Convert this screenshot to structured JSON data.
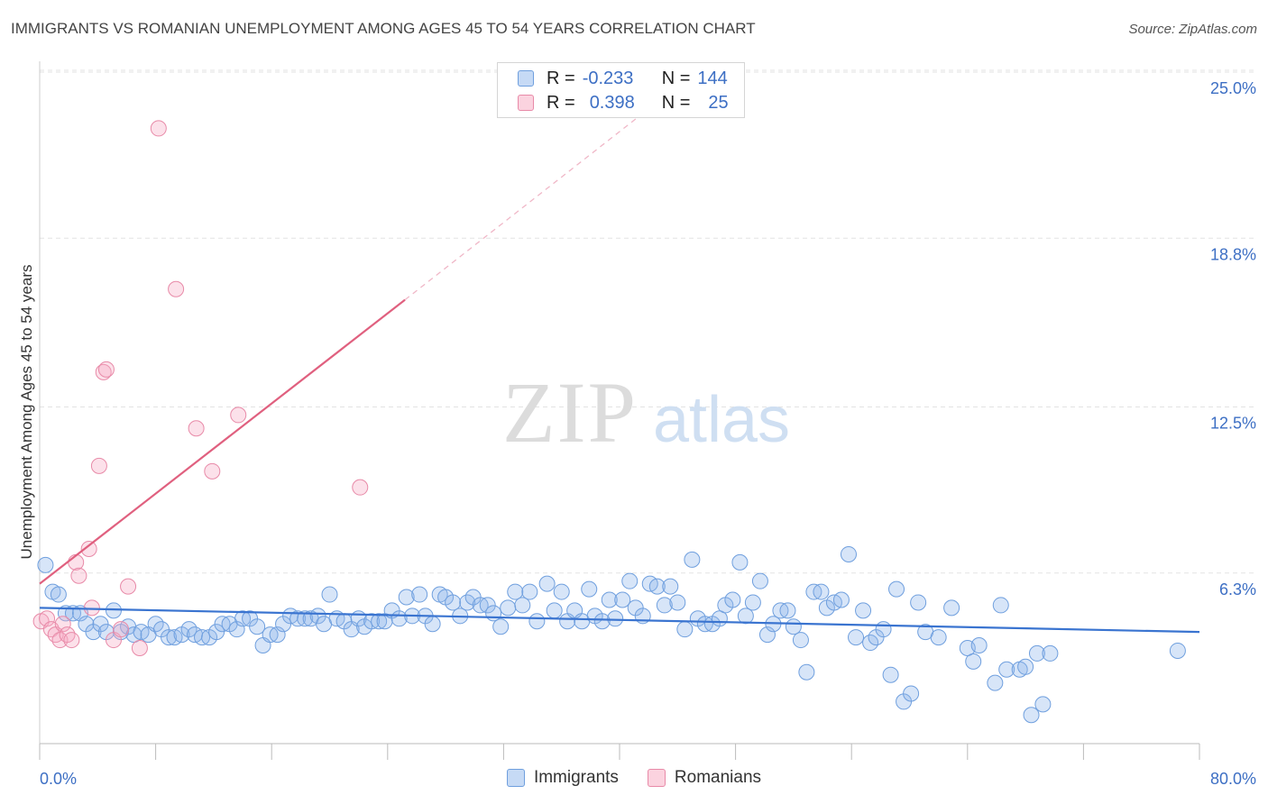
{
  "title": "IMMIGRANTS VS ROMANIAN UNEMPLOYMENT AMONG AGES 45 TO 54 YEARS CORRELATION CHART",
  "source": "Source: ZipAtlas.com",
  "watermark": {
    "zip": "ZIP",
    "atlas": "atlas"
  },
  "legend": {
    "rows": [
      {
        "r_label": "R =",
        "r_value": "-0.233",
        "n_label": "N =",
        "n_value": "144",
        "color": "#a9c8f0",
        "border": "#6f9fde"
      },
      {
        "r_label": "R =",
        "r_value": "0.398",
        "n_label": "N =",
        "n_value": "25",
        "color": "#f7b9cc",
        "border": "#e88aa8"
      }
    ]
  },
  "bottom_legend": {
    "immigrants": "Immigrants",
    "romanians": "Romanians"
  },
  "colors": {
    "immigrants_fill": "rgba(140,180,235,0.35)",
    "immigrants_stroke": "#6f9fde",
    "romanians_fill": "rgba(245,170,195,0.35)",
    "romanians_stroke": "#e88aa8",
    "immigrants_trend": "#3a74d0",
    "romanians_trend": "#e0607f",
    "axis_text": "#3d6fc4",
    "grid": "#e3e3e3"
  },
  "chart_data": {
    "type": "scatter",
    "title": "IMMIGRANTS VS ROMANIAN UNEMPLOYMENT AMONG AGES 45 TO 54 YEARS CORRELATION CHART",
    "xlabel": "",
    "ylabel": "Unemployment Among Ages 45 to 54 years",
    "xlim": [
      0,
      80
    ],
    "ylim": [
      0,
      25
    ],
    "x_tick_labels": [
      "0.0%",
      "80.0%"
    ],
    "y_ticks": [
      {
        "value": 6.3,
        "label": "6.3%"
      },
      {
        "value": 12.5,
        "label": "12.5%"
      },
      {
        "value": 18.8,
        "label": "18.8%"
      },
      {
        "value": 25.0,
        "label": "25.0%"
      }
    ],
    "grid": true,
    "legend_position": "top-center",
    "series": [
      {
        "name": "Immigrants",
        "trend": {
          "x": [
            0,
            80
          ],
          "y": [
            5.0,
            4.1
          ],
          "style": "solid"
        },
        "points": [
          [
            0.4,
            6.6
          ],
          [
            0.9,
            5.6
          ],
          [
            1.3,
            5.5
          ],
          [
            1.8,
            4.8
          ],
          [
            2.3,
            4.8
          ],
          [
            2.8,
            4.8
          ],
          [
            3.2,
            4.4
          ],
          [
            3.7,
            4.1
          ],
          [
            4.2,
            4.4
          ],
          [
            4.6,
            4.1
          ],
          [
            5.1,
            4.9
          ],
          [
            5.6,
            4.1
          ],
          [
            6.1,
            4.3
          ],
          [
            6.5,
            4.0
          ],
          [
            7.0,
            4.1
          ],
          [
            7.5,
            4.0
          ],
          [
            8.0,
            4.4
          ],
          [
            8.4,
            4.2
          ],
          [
            8.9,
            3.9
          ],
          [
            9.3,
            3.9
          ],
          [
            9.8,
            4.0
          ],
          [
            10.3,
            4.2
          ],
          [
            10.7,
            4.0
          ],
          [
            11.2,
            3.9
          ],
          [
            11.7,
            3.9
          ],
          [
            12.2,
            4.1
          ],
          [
            12.6,
            4.4
          ],
          [
            13.1,
            4.4
          ],
          [
            13.6,
            4.2
          ],
          [
            14.0,
            4.6
          ],
          [
            14.5,
            4.6
          ],
          [
            15.0,
            4.3
          ],
          [
            15.4,
            3.6
          ],
          [
            15.9,
            4.0
          ],
          [
            16.4,
            4.0
          ],
          [
            16.8,
            4.4
          ],
          [
            17.3,
            4.7
          ],
          [
            17.8,
            4.6
          ],
          [
            18.3,
            4.6
          ],
          [
            18.7,
            4.6
          ],
          [
            19.2,
            4.7
          ],
          [
            19.6,
            4.4
          ],
          [
            20.0,
            5.5
          ],
          [
            20.5,
            4.6
          ],
          [
            21.0,
            4.5
          ],
          [
            21.5,
            4.2
          ],
          [
            22.0,
            4.6
          ],
          [
            22.4,
            4.3
          ],
          [
            22.9,
            4.5
          ],
          [
            23.4,
            4.5
          ],
          [
            23.8,
            4.5
          ],
          [
            24.3,
            4.9
          ],
          [
            24.8,
            4.6
          ],
          [
            25.3,
            5.4
          ],
          [
            25.7,
            4.7
          ],
          [
            26.2,
            5.5
          ],
          [
            26.6,
            4.7
          ],
          [
            27.1,
            4.4
          ],
          [
            27.6,
            5.5
          ],
          [
            28.0,
            5.4
          ],
          [
            28.5,
            5.2
          ],
          [
            29.0,
            4.7
          ],
          [
            29.5,
            5.2
          ],
          [
            29.9,
            5.4
          ],
          [
            30.4,
            5.1
          ],
          [
            30.9,
            5.1
          ],
          [
            31.3,
            4.8
          ],
          [
            31.8,
            4.3
          ],
          [
            32.3,
            5.0
          ],
          [
            32.8,
            5.6
          ],
          [
            33.3,
            5.1
          ],
          [
            33.8,
            5.6
          ],
          [
            34.3,
            4.5
          ],
          [
            35.0,
            5.9
          ],
          [
            35.5,
            4.9
          ],
          [
            36.0,
            5.6
          ],
          [
            36.4,
            4.5
          ],
          [
            36.9,
            4.9
          ],
          [
            37.4,
            4.5
          ],
          [
            37.9,
            5.7
          ],
          [
            38.3,
            4.7
          ],
          [
            38.8,
            4.5
          ],
          [
            39.3,
            5.3
          ],
          [
            39.7,
            4.6
          ],
          [
            40.2,
            5.3
          ],
          [
            40.7,
            6.0
          ],
          [
            41.1,
            5.0
          ],
          [
            41.6,
            4.7
          ],
          [
            42.1,
            5.9
          ],
          [
            42.6,
            5.8
          ],
          [
            43.1,
            5.1
          ],
          [
            43.5,
            5.8
          ],
          [
            44.0,
            5.2
          ],
          [
            44.5,
            4.2
          ],
          [
            45.0,
            6.8
          ],
          [
            45.4,
            4.6
          ],
          [
            45.9,
            4.4
          ],
          [
            46.4,
            4.4
          ],
          [
            46.9,
            4.6
          ],
          [
            47.3,
            5.1
          ],
          [
            47.8,
            5.3
          ],
          [
            48.3,
            6.7
          ],
          [
            48.7,
            4.7
          ],
          [
            49.2,
            5.2
          ],
          [
            49.7,
            6.0
          ],
          [
            50.2,
            4.0
          ],
          [
            50.6,
            4.4
          ],
          [
            51.1,
            4.9
          ],
          [
            51.6,
            4.9
          ],
          [
            52.0,
            4.3
          ],
          [
            52.5,
            3.8
          ],
          [
            52.9,
            2.6
          ],
          [
            53.4,
            5.6
          ],
          [
            53.9,
            5.6
          ],
          [
            54.3,
            5.0
          ],
          [
            54.8,
            5.2
          ],
          [
            55.3,
            5.3
          ],
          [
            55.8,
            7.0
          ],
          [
            56.3,
            3.9
          ],
          [
            56.8,
            4.9
          ],
          [
            57.3,
            3.7
          ],
          [
            57.7,
            3.9
          ],
          [
            58.2,
            4.2
          ],
          [
            58.7,
            2.5
          ],
          [
            59.1,
            5.7
          ],
          [
            59.6,
            1.5
          ],
          [
            60.1,
            1.8
          ],
          [
            60.6,
            5.2
          ],
          [
            61.1,
            4.1
          ],
          [
            62.0,
            3.9
          ],
          [
            62.9,
            5.0
          ],
          [
            64.0,
            3.5
          ],
          [
            64.4,
            3.0
          ],
          [
            64.8,
            3.6
          ],
          [
            65.9,
            2.2
          ],
          [
            66.3,
            5.1
          ],
          [
            66.7,
            2.7
          ],
          [
            67.6,
            2.7
          ],
          [
            68.0,
            2.8
          ],
          [
            68.4,
            1.0
          ],
          [
            68.8,
            3.3
          ],
          [
            69.2,
            1.4
          ],
          [
            69.7,
            3.3
          ],
          [
            78.5,
            3.4
          ]
        ]
      },
      {
        "name": "Romanians",
        "trend": {
          "x": [
            0,
            25.2
          ],
          "y": [
            5.9,
            16.5
          ],
          "dashed_extension": {
            "x": [
              25.2,
              45
            ],
            "y": [
              16.5,
              24.9
            ]
          },
          "style": "solid"
        },
        "points": [
          [
            0.1,
            4.5
          ],
          [
            0.5,
            4.6
          ],
          [
            0.8,
            4.2
          ],
          [
            1.1,
            4.0
          ],
          [
            1.4,
            3.8
          ],
          [
            1.6,
            4.4
          ],
          [
            1.9,
            4.0
          ],
          [
            2.2,
            3.8
          ],
          [
            2.5,
            6.7
          ],
          [
            2.7,
            6.2
          ],
          [
            3.4,
            7.2
          ],
          [
            3.6,
            5.0
          ],
          [
            4.1,
            10.3
          ],
          [
            4.4,
            13.8
          ],
          [
            4.6,
            13.9
          ],
          [
            5.1,
            3.8
          ],
          [
            5.6,
            4.2
          ],
          [
            6.1,
            5.8
          ],
          [
            6.9,
            3.5
          ],
          [
            8.2,
            22.9
          ],
          [
            9.4,
            16.9
          ],
          [
            10.8,
            11.7
          ],
          [
            11.9,
            10.1
          ],
          [
            13.7,
            12.2
          ],
          [
            22.1,
            9.5
          ]
        ]
      }
    ]
  }
}
